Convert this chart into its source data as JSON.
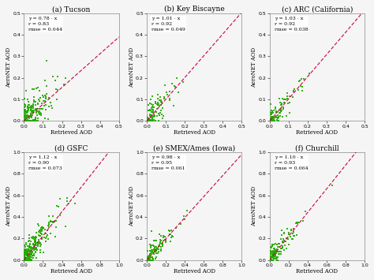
{
  "subplots": [
    {
      "title": "(a) Tucson",
      "eq": "y = 0.78 · x",
      "r_val": "r = 0.83",
      "rmse_val": "rmse = 0.044",
      "xlim": [
        0.0,
        0.5
      ],
      "ylim": [
        0.0,
        0.5
      ],
      "xticks": [
        0.0,
        0.1,
        0.2,
        0.3,
        0.4,
        0.5
      ],
      "yticks": [
        0.0,
        0.1,
        0.2,
        0.3,
        0.4,
        0.5
      ],
      "slope": 0.78,
      "n_points": 220,
      "seed": 42,
      "noise_scale": 0.048
    },
    {
      "title": "(b) Key Biscayne",
      "eq": "y = 1.01 · x",
      "r_val": "r = 0.92",
      "rmse_val": "rmse = 0.049",
      "xlim": [
        0.0,
        0.5
      ],
      "ylim": [
        0.0,
        0.5
      ],
      "xticks": [
        0.0,
        0.1,
        0.2,
        0.3,
        0.4,
        0.5
      ],
      "yticks": [
        0.0,
        0.1,
        0.2,
        0.3,
        0.4,
        0.5
      ],
      "slope": 1.01,
      "n_points": 110,
      "seed": 7,
      "noise_scale": 0.038
    },
    {
      "title": "(c) ARC (California)",
      "eq": "y = 1.03 · x",
      "r_val": "r = 0.92",
      "rmse_val": "rmse = 0.038",
      "xlim": [
        0.0,
        0.5
      ],
      "ylim": [
        0.0,
        0.5
      ],
      "xticks": [
        0.0,
        0.1,
        0.2,
        0.3,
        0.4,
        0.5
      ],
      "yticks": [
        0.0,
        0.1,
        0.2,
        0.3,
        0.4,
        0.5
      ],
      "slope": 1.03,
      "n_points": 120,
      "seed": 13,
      "noise_scale": 0.03
    },
    {
      "title": "(d) GSFC",
      "eq": "y = 1.12 · x",
      "r_val": "r = 0.90",
      "rmse_val": "rmse = 0.073",
      "xlim": [
        0.0,
        1.0
      ],
      "ylim": [
        0.0,
        1.0
      ],
      "xticks": [
        0.0,
        0.2,
        0.4,
        0.6,
        0.8,
        1.0
      ],
      "yticks": [
        0.0,
        0.2,
        0.4,
        0.6,
        0.8,
        1.0
      ],
      "slope": 1.12,
      "n_points": 280,
      "seed": 99,
      "noise_scale": 0.065
    },
    {
      "title": "(e) SMEX/Ames (Iowa)",
      "eq": "y = 0.98 · x",
      "r_val": "r = 0.95",
      "rmse_val": "rmse = 0.061",
      "xlim": [
        0.0,
        1.0
      ],
      "ylim": [
        0.0,
        1.0
      ],
      "xticks": [
        0.0,
        0.2,
        0.4,
        0.6,
        0.8,
        1.0
      ],
      "yticks": [
        0.0,
        0.2,
        0.4,
        0.6,
        0.8,
        1.0
      ],
      "slope": 0.98,
      "n_points": 130,
      "seed": 55,
      "noise_scale": 0.045
    },
    {
      "title": "(f) Churchill",
      "eq": "y = 1.10 · x",
      "r_val": "r = 0.93",
      "rmse_val": "rmse = 0.064",
      "xlim": [
        0.0,
        1.0
      ],
      "ylim": [
        0.0,
        1.0
      ],
      "xticks": [
        0.0,
        0.2,
        0.4,
        0.6,
        0.8,
        1.0
      ],
      "yticks": [
        0.0,
        0.2,
        0.4,
        0.6,
        0.8,
        1.0
      ],
      "slope": 1.1,
      "n_points": 150,
      "seed": 77,
      "noise_scale": 0.05
    }
  ],
  "dot_color": "#22aa00",
  "line_color": "#cc0044",
  "dot_size": 3,
  "xlabel": "Retrieved AOD",
  "ylabel": "AeroNET AOD",
  "bg_color": "#f5f5f5",
  "title_fontsize": 6.5,
  "tick_fontsize": 4.5,
  "label_fontsize": 5.0,
  "annot_fontsize": 4.5
}
